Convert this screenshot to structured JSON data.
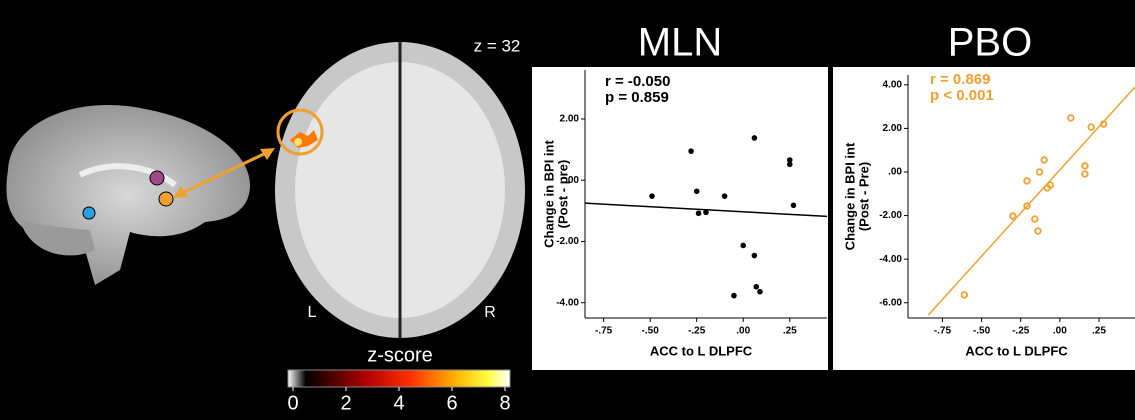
{
  "chart_data": [
    {
      "type": "scatter",
      "title": "MLN",
      "color": "#000000",
      "annotations": [
        "r = -0.050",
        "p = 0.859"
      ],
      "xlabel": "ACC to L DLPFC",
      "ylabel": [
        "Change in BPI int",
        "(Post - pre)"
      ],
      "xlim": [
        -0.85,
        0.45
      ],
      "ylim": [
        -4.5,
        3.6
      ],
      "xticks": [
        {
          "value": -0.75,
          "label": "-.75"
        },
        {
          "value": -0.5,
          "label": "-.50"
        },
        {
          "value": -0.25,
          "label": "-.25"
        },
        {
          "value": 0,
          "label": ".00"
        },
        {
          "value": 0.25,
          "label": ".25"
        }
      ],
      "yticks": [
        {
          "value": 2,
          "label": "2.00"
        },
        {
          "value": 0,
          "label": ".00"
        },
        {
          "value": -2,
          "label": "-2.00"
        },
        {
          "value": -4,
          "label": "-4.00"
        }
      ],
      "x": [
        0.06,
        -0.28,
        -0.49,
        -0.25,
        -0.24,
        -0.2,
        -0.1,
        0.25,
        0.25,
        0.27,
        0.0,
        0.06,
        0.07,
        0.09,
        -0.05
      ],
      "y": [
        1.38,
        0.95,
        -0.52,
        -0.36,
        -1.08,
        -1.05,
        -0.52,
        0.66,
        0.52,
        -0.82,
        -2.13,
        -2.46,
        -3.48,
        -3.64,
        -3.77
      ],
      "fit": {
        "x": [
          -0.85,
          0.45
        ],
        "y": [
          -0.75,
          -1.18
        ]
      }
    },
    {
      "type": "scatter",
      "title": "PBO",
      "color": "#f0a030",
      "annotations": [
        "r = 0.869",
        "p < 0.001"
      ],
      "xlabel": "ACC to L DLPFC",
      "ylabel": [
        "Change in BPI int",
        "(Post - Pre)"
      ],
      "xlim": [
        -0.97,
        0.48
      ],
      "ylim": [
        -6.7,
        4.45
      ],
      "xticks": [
        {
          "value": -0.75,
          "label": "-.75"
        },
        {
          "value": -0.5,
          "label": "-.50"
        },
        {
          "value": -0.25,
          "label": "-.25"
        },
        {
          "value": 0,
          "label": ".00"
        },
        {
          "value": 0.25,
          "label": ".25"
        }
      ],
      "yticks": [
        {
          "value": 4,
          "label": "4.00"
        },
        {
          "value": 2,
          "label": "2.00"
        },
        {
          "value": 0,
          "label": ".00"
        },
        {
          "value": -2,
          "label": "-2.00"
        },
        {
          "value": -4,
          "label": "-4.00"
        },
        {
          "value": -6,
          "label": "-6.00"
        }
      ],
      "x": [
        -0.61,
        -0.3,
        -0.21,
        -0.21,
        -0.13,
        -0.1,
        -0.06,
        -0.08,
        -0.16,
        -0.14,
        0.16,
        0.16,
        0.07,
        0.2,
        0.28
      ],
      "y": [
        -5.64,
        -2.02,
        -1.56,
        -0.41,
        0,
        0.55,
        -0.6,
        -0.73,
        -2.16,
        -2.71,
        0.28,
        -0.09,
        2.48,
        2.06,
        2.2
      ],
      "fit": {
        "x": [
          -0.84,
          0.48
        ],
        "y": [
          -6.56,
          3.9
        ]
      }
    }
  ],
  "brain": {
    "slice_label": "z = 32",
    "left": "L",
    "right": "R"
  },
  "colorbar": {
    "title": "z-score",
    "range": [
      0,
      8
    ],
    "ticks": [
      0,
      2,
      4,
      6,
      8
    ]
  }
}
